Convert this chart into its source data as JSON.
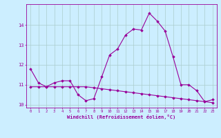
{
  "xlabel": "Windchill (Refroidissement éolien,°C)",
  "hours": [
    0,
    1,
    2,
    3,
    4,
    5,
    6,
    7,
    8,
    9,
    10,
    11,
    12,
    13,
    14,
    15,
    16,
    17,
    18,
    19,
    20,
    21,
    22,
    23
  ],
  "line1": [
    11.8,
    11.1,
    10.9,
    11.1,
    11.2,
    11.2,
    10.5,
    10.2,
    10.3,
    11.4,
    12.5,
    12.8,
    13.5,
    13.8,
    13.75,
    14.6,
    14.2,
    13.7,
    12.4,
    11.0,
    11.0,
    10.7,
    10.15,
    10.25
  ],
  "line2": [
    10.9,
    10.9,
    10.9,
    10.9,
    10.9,
    10.9,
    10.9,
    10.9,
    10.85,
    10.8,
    10.75,
    10.7,
    10.65,
    10.6,
    10.55,
    10.5,
    10.45,
    10.4,
    10.35,
    10.3,
    10.25,
    10.2,
    10.15,
    10.1
  ],
  "line_color": "#990099",
  "bg_color": "#cceeff",
  "grid_color": "#aacccc",
  "ylim": [
    9.85,
    15.05
  ],
  "yticks": [
    10,
    11,
    12,
    13,
    14
  ],
  "xticks": [
    0,
    1,
    2,
    3,
    4,
    5,
    6,
    7,
    8,
    9,
    10,
    11,
    12,
    13,
    14,
    15,
    16,
    17,
    18,
    19,
    20,
    21,
    22,
    23
  ]
}
